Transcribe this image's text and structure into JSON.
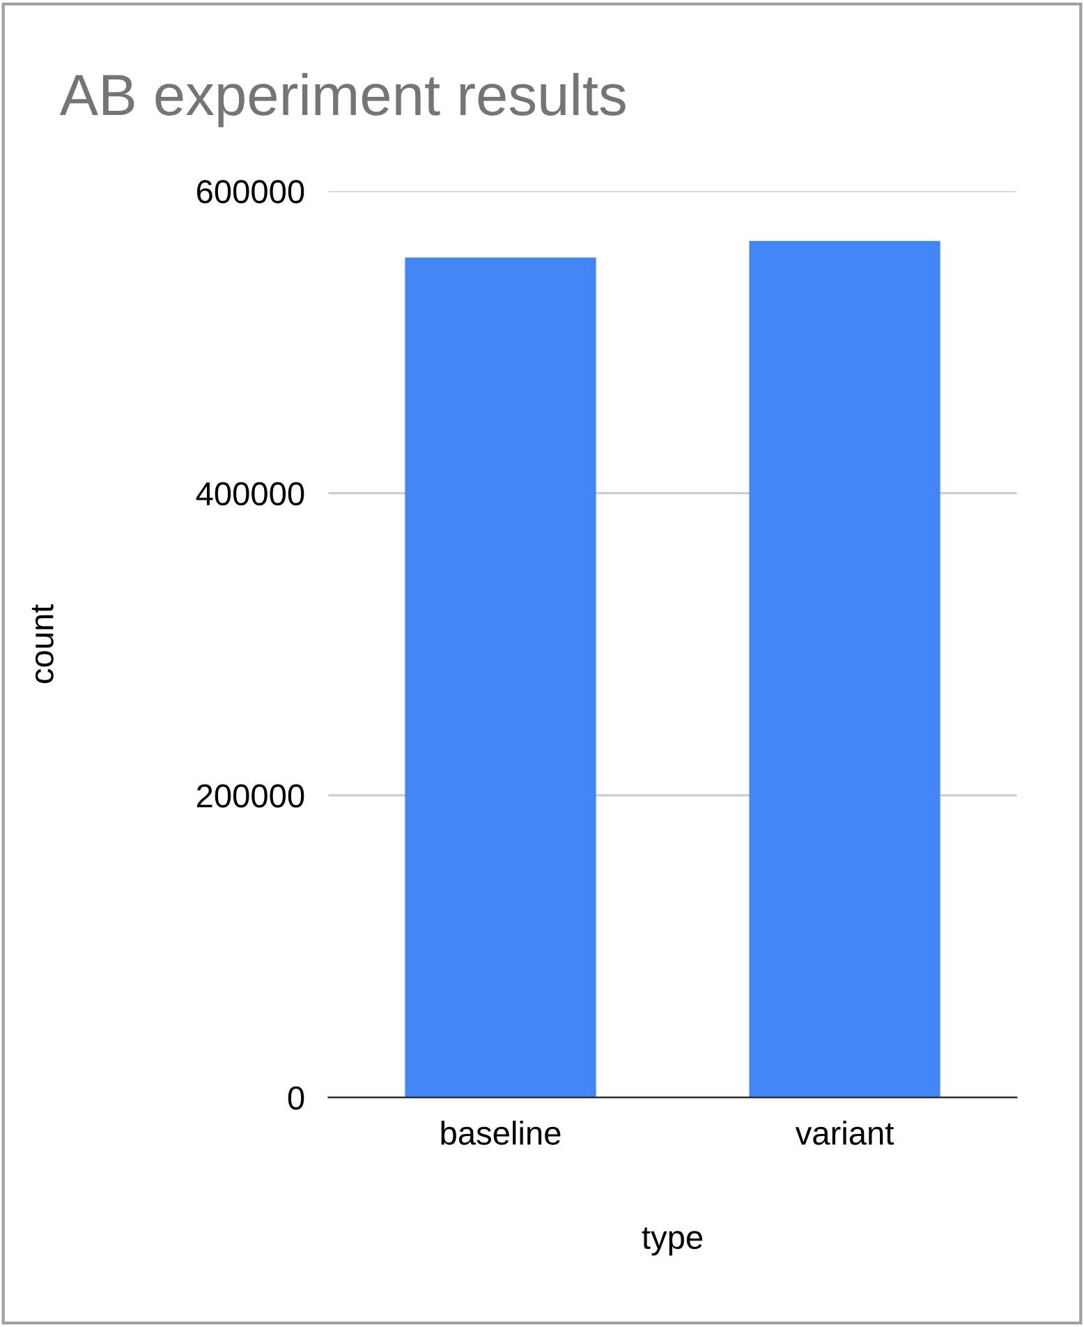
{
  "chart_data": {
    "type": "bar",
    "title": "AB experiment results",
    "xlabel": "type",
    "ylabel": "count",
    "categories": [
      "baseline",
      "variant"
    ],
    "series": [
      {
        "color": "#4285f4",
        "values": [
          556000,
          567000
        ]
      }
    ],
    "ylim": [
      0,
      600000
    ],
    "yticks": [
      0,
      200000,
      400000,
      600000
    ],
    "grid": "y"
  }
}
